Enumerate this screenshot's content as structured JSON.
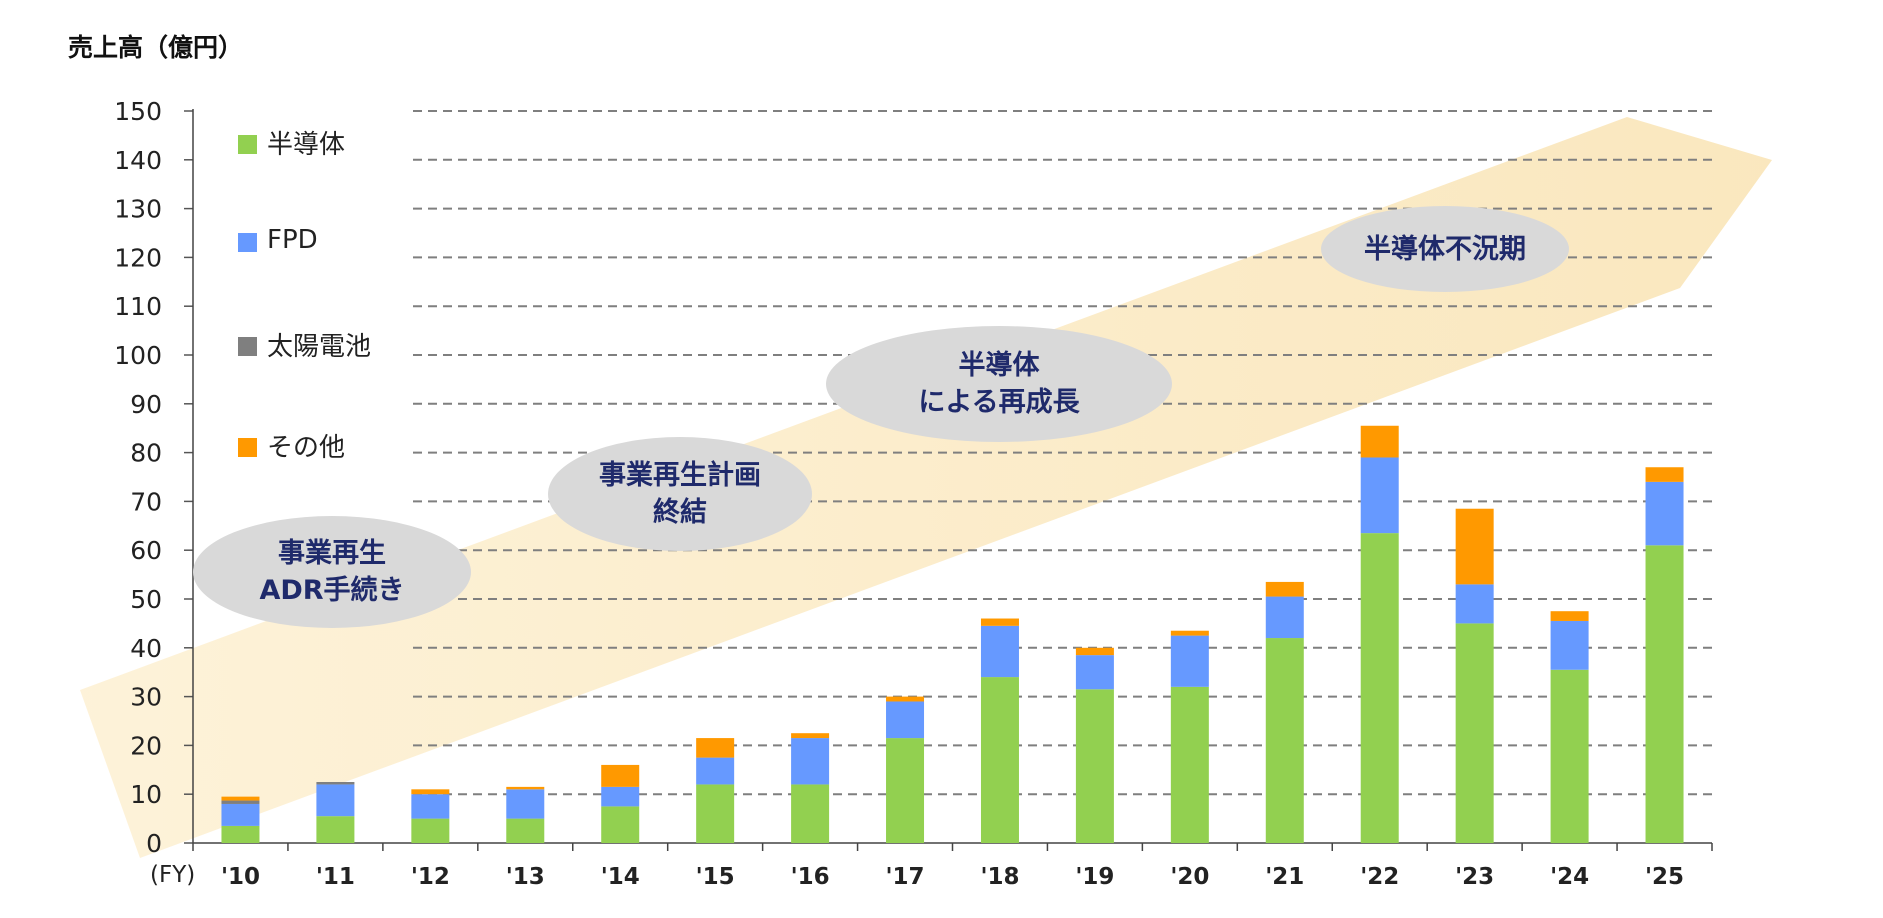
{
  "chart_data": {
    "type": "bar",
    "stacked": true,
    "title": "売上高（億円）",
    "xlabel": "(FY)",
    "ylabel": "",
    "ylim": [
      0,
      150
    ],
    "yticks": [
      0,
      10,
      20,
      30,
      40,
      50,
      60,
      70,
      80,
      90,
      100,
      110,
      120,
      130,
      140,
      150
    ],
    "grid": true,
    "legend_position": "top-left",
    "categories": [
      "'10",
      "'11",
      "'12",
      "'13",
      "'14",
      "'15",
      "'16",
      "'17",
      "'18",
      "'19",
      "'20",
      "'21",
      "'22",
      "'23",
      "'24",
      "'25"
    ],
    "series": [
      {
        "name": "半導体",
        "color": "#92d050",
        "values": [
          3.5,
          5.5,
          5,
          5,
          7.5,
          12,
          12,
          21.5,
          34,
          31.5,
          32,
          42,
          63.5,
          45,
          35.5,
          61
        ]
      },
      {
        "name": "FPD",
        "color": "#6699ff",
        "values": [
          4.5,
          6.5,
          5,
          6,
          4,
          5.5,
          9.5,
          7.5,
          10.5,
          7,
          10.5,
          8.5,
          15.5,
          8,
          10,
          13
        ]
      },
      {
        "name": "太陽電池",
        "color": "#7f7f7f",
        "values": [
          0.7,
          0.5,
          0,
          0,
          0,
          0,
          0,
          0,
          0,
          0,
          0,
          0,
          0,
          0,
          0,
          0
        ]
      },
      {
        "name": "その他",
        "color": "#ff9900",
        "values": [
          0.8,
          0,
          1,
          0.5,
          4.5,
          4,
          1,
          1,
          1.5,
          1.5,
          1,
          3,
          6.5,
          15.5,
          2,
          3
        ]
      }
    ],
    "annotations": [
      {
        "lines": [
          "事業再生",
          "ADR手続き"
        ]
      },
      {
        "lines": [
          "事業再生計画",
          "終結"
        ]
      },
      {
        "lines": [
          "半導体",
          "による再成長"
        ]
      },
      {
        "lines": [
          "半導体不況期"
        ]
      }
    ]
  }
}
